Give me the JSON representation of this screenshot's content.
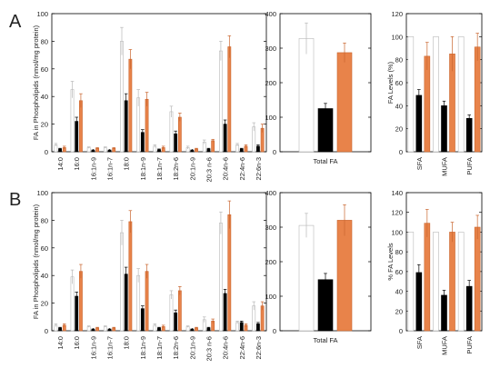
{
  "colors": {
    "open": "#ffffff",
    "filled": "#000000",
    "orange": "#e8834a",
    "stroke": "#333333",
    "gray": "#b8b8b8"
  },
  "chart_data": [
    {
      "panel": "A",
      "type": "bar",
      "ylabel": "FA in Phospholipids (nmol/mg protein)",
      "ylim": [
        0,
        100
      ],
      "yticks": [
        0,
        20,
        40,
        60,
        80,
        100
      ],
      "categories": [
        "14:0",
        "16:0",
        "16:1n-9",
        "16:1n-7",
        "18:0",
        "18:1n-9",
        "18:1n-7",
        "18:2n-6",
        "20:1n-9",
        "20:3 n-6",
        "20:4n-6",
        "22:4n-6",
        "22:6n-3"
      ],
      "series": [
        {
          "values": [
            5,
            45,
            3,
            3,
            80,
            39,
            4,
            29,
            3,
            7,
            73,
            5,
            18
          ],
          "errors": [
            1,
            6,
            0.5,
            0.5,
            10,
            6,
            1,
            4,
            1,
            1.5,
            7,
            1,
            3
          ]
        },
        {
          "values": [
            2,
            22,
            1,
            1,
            37,
            14,
            1.5,
            13,
            1,
            2,
            20,
            2,
            4
          ],
          "errors": [
            0.5,
            3,
            0.3,
            0.3,
            5,
            2,
            0.5,
            2,
            0.3,
            0.5,
            3,
            0.5,
            1
          ]
        },
        {
          "values": [
            3,
            37,
            2.5,
            2.5,
            67,
            38,
            3,
            25,
            2,
            8,
            76,
            4,
            17
          ],
          "errors": [
            1,
            5,
            0.5,
            0.5,
            7,
            5,
            1,
            3,
            0.5,
            1,
            8,
            1,
            3
          ]
        }
      ]
    },
    {
      "panel": "A",
      "type": "bar",
      "ylim": [
        0,
        400
      ],
      "yticks": [
        0,
        100,
        200,
        300,
        400
      ],
      "categories": [
        "Total FA"
      ],
      "series": [
        {
          "values": [
            328
          ],
          "errors": [
            45
          ]
        },
        {
          "values": [
            125
          ],
          "errors": [
            15
          ]
        },
        {
          "values": [
            287
          ],
          "errors": [
            28
          ]
        }
      ]
    },
    {
      "panel": "A",
      "type": "bar",
      "ylabel": "FA Levels (%)",
      "ylim": [
        0,
        120
      ],
      "yticks": [
        0,
        20,
        40,
        60,
        80,
        100,
        120
      ],
      "categories": [
        "SFA",
        "MUFA",
        "PUFA"
      ],
      "series": [
        {
          "values": [
            100,
            100,
            100
          ],
          "errors": [
            0,
            0,
            0
          ]
        },
        {
          "values": [
            49,
            40,
            29
          ],
          "errors": [
            5,
            4,
            3
          ]
        },
        {
          "values": [
            83,
            85,
            91
          ],
          "errors": [
            12,
            15,
            12
          ]
        }
      ]
    },
    {
      "panel": "B",
      "type": "bar",
      "ylabel": "FA in Phospholipids (nmol/mg protein)",
      "ylim": [
        0,
        100
      ],
      "yticks": [
        0,
        20,
        40,
        60,
        80,
        100
      ],
      "categories": [
        "14:0",
        "16:0",
        "16:1n-9",
        "16:1n-7",
        "18:0",
        "18:1n-9",
        "18:1n-7",
        "18:2n-6",
        "20:1n-9",
        "20:3 n-6",
        "20:4n-6",
        "22:4n-6",
        "22:6n-3"
      ],
      "series": [
        {
          "values": [
            4,
            39,
            3,
            3,
            71,
            40,
            4,
            26,
            3,
            8,
            78,
            6,
            18
          ],
          "errors": [
            1,
            5,
            0.5,
            0.5,
            9,
            5,
            1,
            3,
            0.5,
            2,
            8,
            1,
            3
          ]
        },
        {
          "values": [
            2,
            25,
            1,
            1,
            41,
            16,
            2,
            13,
            1,
            2,
            27,
            6,
            5
          ],
          "errors": [
            0.5,
            3,
            0.3,
            0.3,
            5,
            2,
            0.5,
            2,
            0.3,
            0.5,
            3,
            1,
            1
          ]
        },
        {
          "values": [
            4,
            43,
            2,
            2,
            79,
            43,
            3,
            29,
            2,
            7,
            84,
            4,
            18
          ],
          "errors": [
            1,
            5,
            0.5,
            0.5,
            8,
            5,
            1,
            3,
            0.5,
            1.5,
            10,
            1,
            3
          ]
        }
      ]
    },
    {
      "panel": "B",
      "type": "bar",
      "ylim": [
        0,
        400
      ],
      "yticks": [
        0,
        100,
        200,
        300,
        400
      ],
      "categories": [
        "Total FA"
      ],
      "series": [
        {
          "values": [
            305
          ],
          "errors": [
            35
          ]
        },
        {
          "values": [
            148
          ],
          "errors": [
            18
          ]
        },
        {
          "values": [
            320
          ],
          "errors": [
            45
          ]
        }
      ]
    },
    {
      "panel": "B",
      "type": "bar",
      "ylabel": "% FA Levels",
      "ylim": [
        0,
        140
      ],
      "yticks": [
        0,
        20,
        40,
        60,
        80,
        100,
        120,
        140
      ],
      "categories": [
        "SFA",
        "MUFA",
        "PUFA"
      ],
      "series": [
        {
          "values": [
            100,
            100,
            100
          ],
          "errors": [
            0,
            0,
            0
          ]
        },
        {
          "values": [
            59,
            36,
            45
          ],
          "errors": [
            8,
            5,
            6
          ]
        },
        {
          "values": [
            109,
            100,
            105
          ],
          "errors": [
            14,
            10,
            12
          ]
        }
      ]
    }
  ]
}
